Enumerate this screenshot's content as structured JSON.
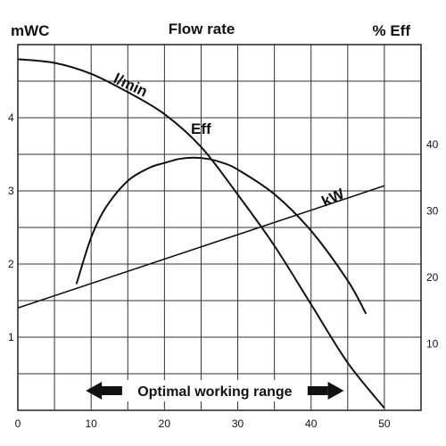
{
  "chart_data": {
    "type": "line",
    "title": "Flow rate",
    "ylabel_left": "mWC",
    "ylabel_right": "% Eff",
    "xlim": [
      0,
      55
    ],
    "ylim_left": [
      0,
      5
    ],
    "ylim_right": [
      0,
      55
    ],
    "x_ticks": [
      "0",
      "10",
      "20",
      "30",
      "40",
      "50"
    ],
    "y_left_ticks": [
      "1",
      "2",
      "3",
      "4"
    ],
    "y_right_ticks": [
      "10",
      "20",
      "30",
      "40"
    ],
    "grid": true,
    "series": [
      {
        "name": "l/min",
        "axis": "left",
        "x": [
          0,
          5,
          10,
          15,
          20,
          25,
          30,
          35,
          40,
          45,
          50
        ],
        "y": [
          4.8,
          4.75,
          4.6,
          4.35,
          4.05,
          3.6,
          2.95,
          2.25,
          1.45,
          0.65,
          0.03
        ]
      },
      {
        "name": "Eff",
        "axis": "right",
        "x": [
          8,
          10,
          12,
          15,
          18,
          20,
          22,
          24,
          26,
          28,
          30,
          35,
          40,
          45,
          47.5
        ],
        "y": [
          19,
          26,
          30.5,
          34.5,
          36.5,
          37.2,
          37.8,
          38,
          37.8,
          37.2,
          36.2,
          32.5,
          27,
          19.5,
          14.5
        ]
      },
      {
        "name": "kW",
        "axis": "left",
        "x": [
          0,
          50
        ],
        "y": [
          1.4,
          3.07
        ]
      }
    ],
    "annotations": [
      {
        "text": "Optimal working range",
        "x_from": 10,
        "x_to": 44
      }
    ]
  }
}
